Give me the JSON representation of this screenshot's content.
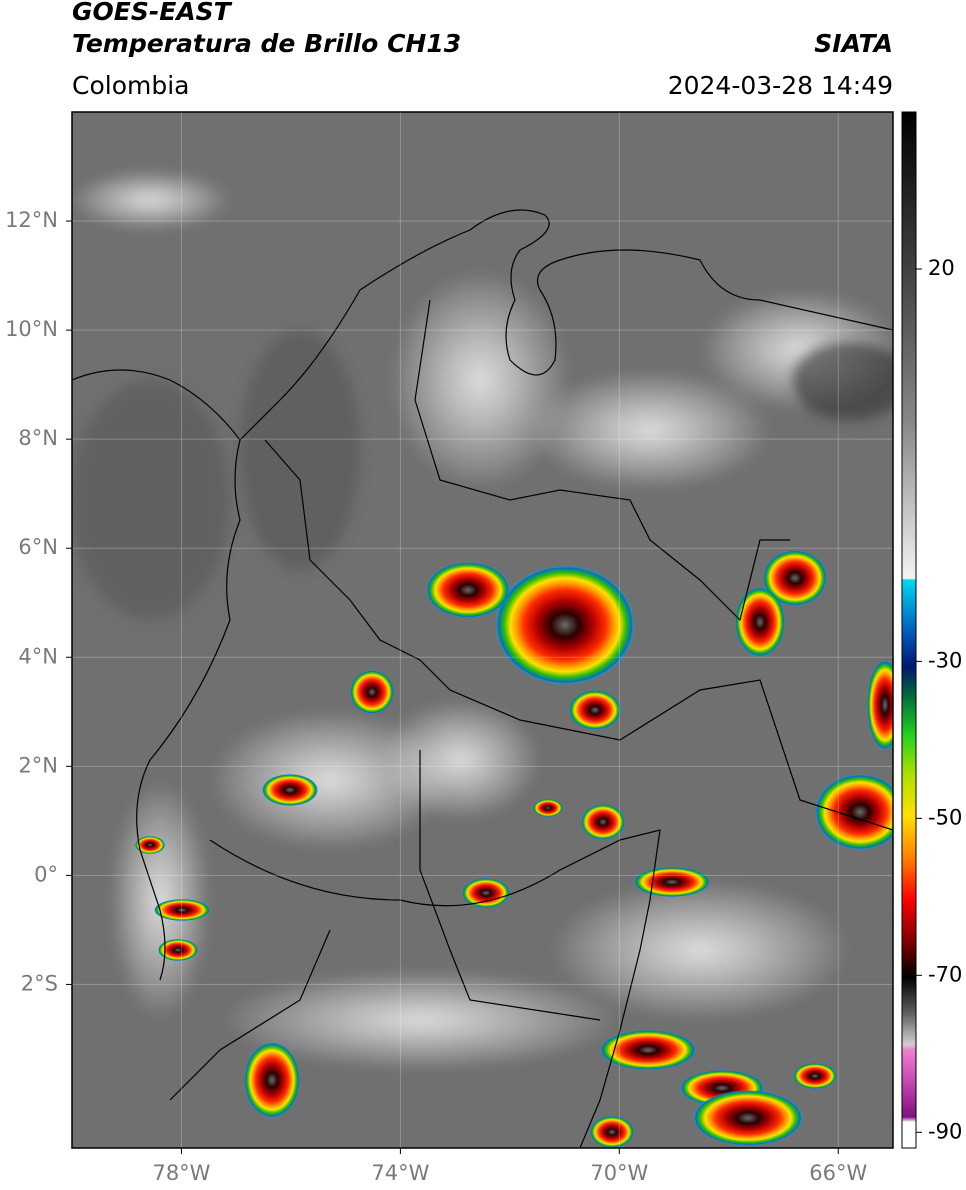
{
  "header": {
    "title": "GOES-EAST",
    "subtitle": "Temperatura de Brillo CH13",
    "region": "Colombia",
    "source": "SIATA",
    "datetime": "2024-03-28 14:49"
  },
  "map": {
    "xlim": [
      -80,
      -65
    ],
    "ylim": [
      -5,
      14
    ],
    "xticks": [
      {
        "value": -78,
        "label": "78°W"
      },
      {
        "value": -74,
        "label": "74°W"
      },
      {
        "value": -70,
        "label": "70°W"
      },
      {
        "value": -66,
        "label": "66°W"
      }
    ],
    "yticks": [
      {
        "value": 12,
        "label": "12°N"
      },
      {
        "value": 10,
        "label": "10°N"
      },
      {
        "value": 8,
        "label": "8°N"
      },
      {
        "value": 6,
        "label": "6°N"
      },
      {
        "value": 4,
        "label": "4°N"
      },
      {
        "value": 2,
        "label": "2°N"
      },
      {
        "value": 0,
        "label": "0°"
      },
      {
        "value": -2,
        "label": "2°S"
      }
    ]
  },
  "colorbar": {
    "lim": [
      -92,
      40
    ],
    "ticks": [
      20,
      -30,
      -50,
      -70,
      -90
    ]
  }
}
